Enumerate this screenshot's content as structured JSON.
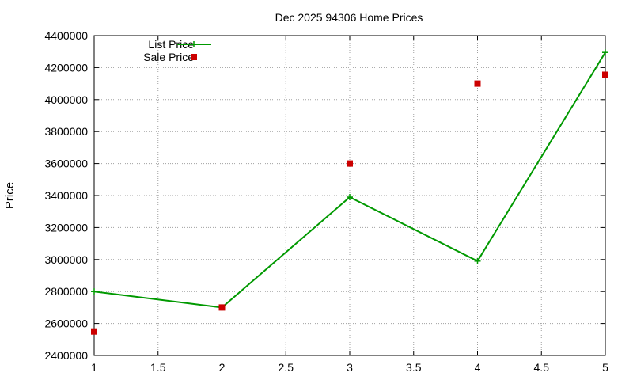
{
  "chart_data": {
    "type": "line",
    "title": "Dec 2025 94306 Home Prices",
    "xlabel": "",
    "ylabel": "Price",
    "xlim": [
      1,
      5
    ],
    "ylim": [
      2400000,
      4400000
    ],
    "x_ticks": [
      1,
      1.5,
      2,
      2.5,
      3,
      3.5,
      4,
      4.5,
      5
    ],
    "x_tick_labels": [
      "1",
      "1.5",
      "2",
      "2.5",
      "3",
      "3.5",
      "4",
      "4.5",
      "5"
    ],
    "y_ticks": [
      2400000,
      2600000,
      2800000,
      3000000,
      3200000,
      3400000,
      3600000,
      3800000,
      4000000,
      4200000,
      4400000
    ],
    "y_tick_labels": [
      "2400000",
      "2600000",
      "2800000",
      "3000000",
      "3200000",
      "3400000",
      "3600000",
      "3800000",
      "4000000",
      "4200000",
      "4400000"
    ],
    "grid": true,
    "legend_position": "top-left",
    "series": [
      {
        "name": "List Price",
        "style": "lines+points",
        "marker": "plus",
        "color": "#009900",
        "x": [
          1,
          2,
          3,
          4,
          5
        ],
        "y": [
          2800000,
          2700000,
          3390000,
          2990000,
          4295000
        ]
      },
      {
        "name": "Sale Price",
        "style": "points",
        "marker": "square",
        "color": "#cc0000",
        "x": [
          1,
          2,
          3,
          4,
          5
        ],
        "y": [
          2550000,
          2700000,
          3600000,
          4100000,
          4155000
        ]
      }
    ]
  }
}
